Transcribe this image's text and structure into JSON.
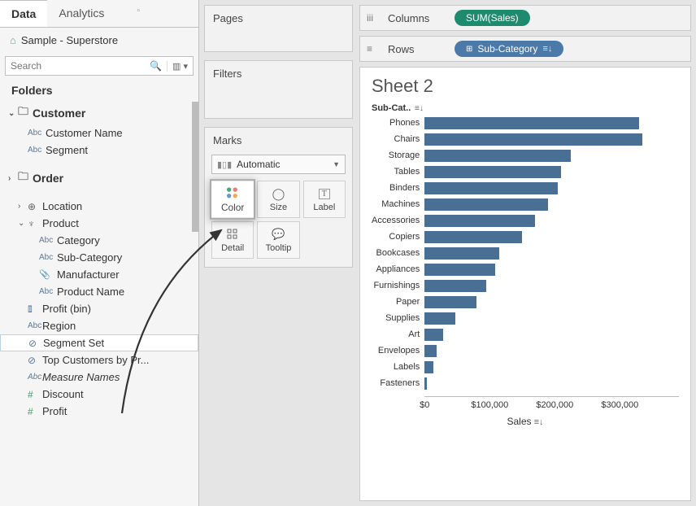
{
  "tabs": {
    "data": "Data",
    "analytics": "Analytics"
  },
  "datasource": "Sample - Superstore",
  "search_placeholder": "Search",
  "folders_label": "Folders",
  "tree": {
    "customer": {
      "label": "Customer",
      "fields": [
        "Customer Name",
        "Segment"
      ]
    },
    "order": {
      "label": "Order"
    },
    "location": {
      "label": "Location"
    },
    "product": {
      "label": "Product",
      "fields": [
        "Category",
        "Sub-Category",
        "Manufacturer",
        "Product Name"
      ]
    },
    "profit_bin": "Profit (bin)",
    "region": "Region",
    "segment_set": "Segment Set",
    "top_customers": "Top Customers by Pr...",
    "measure_names": "Measure Names",
    "discount": "Discount",
    "profit": "Profit"
  },
  "cards": {
    "pages": "Pages",
    "filters": "Filters",
    "marks": "Marks",
    "marks_type": "Automatic",
    "color": "Color",
    "size": "Size",
    "label": "Label",
    "detail": "Detail",
    "tooltip": "Tooltip"
  },
  "shelves": {
    "columns": "Columns",
    "rows": "Rows",
    "col_pill": "SUM(Sales)",
    "row_pill": "Sub-Category"
  },
  "viz": {
    "title": "Sheet 2",
    "sub_label": "Sub-Cat..",
    "x_label": "Sales",
    "bar_color": "#4a6f95",
    "max_value": 350000,
    "categories": [
      "Phones",
      "Chairs",
      "Storage",
      "Tables",
      "Binders",
      "Machines",
      "Accessories",
      "Copiers",
      "Bookcases",
      "Appliances",
      "Furnishings",
      "Paper",
      "Supplies",
      "Art",
      "Envelopes",
      "Labels",
      "Fasteners"
    ],
    "values": [
      330000,
      335000,
      225000,
      210000,
      205000,
      190000,
      170000,
      150000,
      115000,
      108000,
      95000,
      80000,
      47000,
      28000,
      18000,
      13000,
      4000
    ],
    "x_ticks": [
      "$0",
      "$100,000",
      "$200,000",
      "$300,000"
    ],
    "x_tick_values": [
      0,
      100000,
      200000,
      300000
    ]
  }
}
